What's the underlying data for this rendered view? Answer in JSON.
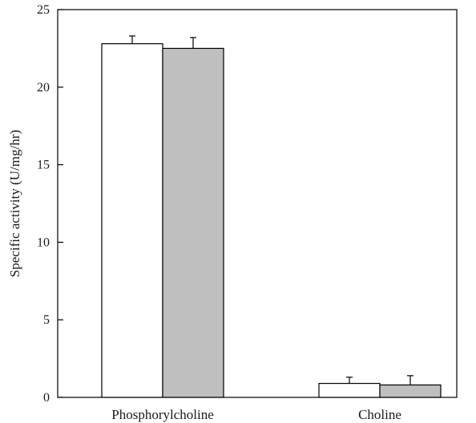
{
  "chart_data": {
    "type": "bar",
    "categories": [
      "Phosphorylcholine",
      "Choline"
    ],
    "series": [
      {
        "values": [
          22.8,
          0.9
        ],
        "errors": [
          0.5,
          0.4
        ],
        "color": "#ffffff"
      },
      {
        "values": [
          22.5,
          0.8
        ],
        "errors": [
          0.7,
          0.6
        ],
        "color": "#bfbfbf"
      }
    ],
    "title": "",
    "xlabel": "",
    "ylabel": "Specific activity (U/mg/hr)",
    "ylim": [
      0,
      25
    ],
    "yticks": [
      0,
      5,
      10,
      15,
      20,
      25
    ],
    "grid": false,
    "legend": "none"
  }
}
